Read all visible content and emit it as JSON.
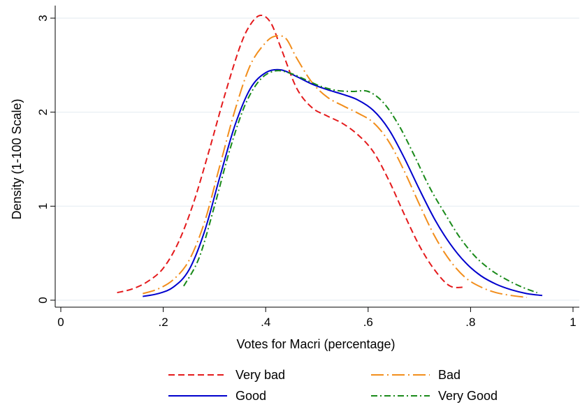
{
  "chart_data": {
    "type": "line",
    "title": "",
    "xlabel": "Votes for Macri (percentage)",
    "ylabel": "Density (1-100 Scale)",
    "xlim": [
      0,
      1
    ],
    "ylim": [
      0,
      3
    ],
    "xticks": [
      0,
      0.2,
      0.4,
      0.6,
      0.8,
      1
    ],
    "xtick_labels": [
      "0",
      ".2",
      ".4",
      ".6",
      ".8",
      "1"
    ],
    "yticks": [
      0,
      1,
      2,
      3
    ],
    "ytick_labels": [
      "0",
      "1",
      "2",
      "3"
    ],
    "grid": "horizontal",
    "legend_position": "bottom",
    "series": [
      {
        "name": "Very bad",
        "color": "#e41a1c",
        "dash": "dash",
        "x": [
          0.11,
          0.14,
          0.17,
          0.2,
          0.23,
          0.26,
          0.29,
          0.32,
          0.35,
          0.37,
          0.39,
          0.41,
          0.43,
          0.46,
          0.49,
          0.52,
          0.55,
          0.58,
          0.61,
          0.64,
          0.67,
          0.7,
          0.73,
          0.76,
          0.79
        ],
        "y": [
          0.08,
          0.12,
          0.2,
          0.34,
          0.62,
          1.05,
          1.6,
          2.18,
          2.7,
          2.93,
          3.03,
          2.95,
          2.68,
          2.26,
          2.05,
          1.96,
          1.88,
          1.76,
          1.58,
          1.28,
          0.92,
          0.58,
          0.32,
          0.15,
          0.14
        ]
      },
      {
        "name": "Bad",
        "color": "#f28e1c",
        "dash": "longdash",
        "x": [
          0.16,
          0.19,
          0.22,
          0.25,
          0.28,
          0.31,
          0.34,
          0.37,
          0.4,
          0.42,
          0.44,
          0.46,
          0.49,
          0.52,
          0.55,
          0.58,
          0.61,
          0.64,
          0.67,
          0.7,
          0.73,
          0.76,
          0.79,
          0.82,
          0.85,
          0.88,
          0.91
        ],
        "y": [
          0.07,
          0.12,
          0.22,
          0.42,
          0.82,
          1.42,
          2.02,
          2.5,
          2.74,
          2.81,
          2.78,
          2.58,
          2.32,
          2.16,
          2.07,
          1.99,
          1.89,
          1.69,
          1.38,
          1.02,
          0.68,
          0.42,
          0.24,
          0.14,
          0.08,
          0.05,
          0.03
        ]
      },
      {
        "name": "Good",
        "color": "#0000cd",
        "dash": "solid",
        "x": [
          0.16,
          0.19,
          0.22,
          0.25,
          0.28,
          0.31,
          0.34,
          0.37,
          0.4,
          0.43,
          0.46,
          0.49,
          0.52,
          0.55,
          0.58,
          0.61,
          0.64,
          0.67,
          0.7,
          0.73,
          0.76,
          0.79,
          0.82,
          0.85,
          0.88,
          0.91,
          0.94
        ],
        "y": [
          0.04,
          0.07,
          0.14,
          0.32,
          0.72,
          1.3,
          1.86,
          2.25,
          2.42,
          2.45,
          2.38,
          2.3,
          2.24,
          2.19,
          2.13,
          2.02,
          1.82,
          1.52,
          1.18,
          0.86,
          0.6,
          0.4,
          0.26,
          0.17,
          0.11,
          0.07,
          0.05
        ]
      },
      {
        "name": "Very Good",
        "color": "#1a8a1a",
        "dash": "dashdot",
        "x": [
          0.24,
          0.27,
          0.3,
          0.33,
          0.36,
          0.39,
          0.42,
          0.45,
          0.48,
          0.51,
          0.54,
          0.57,
          0.6,
          0.63,
          0.66,
          0.69,
          0.72,
          0.75,
          0.78,
          0.81,
          0.84,
          0.87,
          0.9,
          0.93
        ],
        "y": [
          0.15,
          0.45,
          1.0,
          1.6,
          2.08,
          2.35,
          2.44,
          2.41,
          2.34,
          2.27,
          2.23,
          2.22,
          2.22,
          2.1,
          1.86,
          1.54,
          1.2,
          0.92,
          0.66,
          0.46,
          0.32,
          0.22,
          0.14,
          0.08
        ]
      }
    ]
  }
}
